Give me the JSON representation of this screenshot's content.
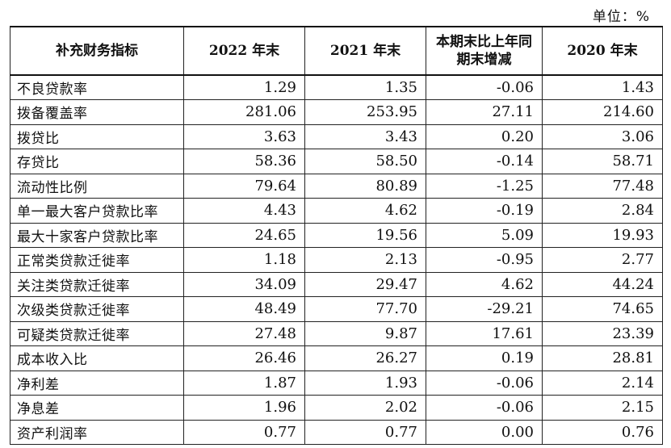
{
  "unit": "单位：%",
  "table": {
    "headers": [
      "补充财务指标",
      "2022 年末",
      "2021 年末",
      "本期末比上年同期末增减",
      "2020 年末"
    ],
    "rows": [
      {
        "label": "不良贷款率",
        "v2022": "1.29",
        "v2021": "1.35",
        "change": "-0.06",
        "v2020": "1.43"
      },
      {
        "label": "拨备覆盖率",
        "v2022": "281.06",
        "v2021": "253.95",
        "change": "27.11",
        "v2020": "214.60"
      },
      {
        "label": "拨贷比",
        "v2022": "3.63",
        "v2021": "3.43",
        "change": "0.20",
        "v2020": "3.06"
      },
      {
        "label": "存贷比",
        "v2022": "58.36",
        "v2021": "58.50",
        "change": "-0.14",
        "v2020": "58.71"
      },
      {
        "label": "流动性比例",
        "v2022": "79.64",
        "v2021": "80.89",
        "change": "-1.25",
        "v2020": "77.48"
      },
      {
        "label": "单一最大客户贷款比率",
        "v2022": "4.43",
        "v2021": "4.62",
        "change": "-0.19",
        "v2020": "2.84"
      },
      {
        "label": "最大十家客户贷款比率",
        "v2022": "24.65",
        "v2021": "19.56",
        "change": "5.09",
        "v2020": "19.93"
      },
      {
        "label": "正常类贷款迁徙率",
        "v2022": "1.18",
        "v2021": "2.13",
        "change": "-0.95",
        "v2020": "2.77"
      },
      {
        "label": "关注类贷款迁徙率",
        "v2022": "34.09",
        "v2021": "29.47",
        "change": "4.62",
        "v2020": "44.24"
      },
      {
        "label": "次级类贷款迁徙率",
        "v2022": "48.49",
        "v2021": "77.70",
        "change": "-29.21",
        "v2020": "74.65"
      },
      {
        "label": "可疑类贷款迁徙率",
        "v2022": "27.48",
        "v2021": "9.87",
        "change": "17.61",
        "v2020": "23.39"
      },
      {
        "label": "成本收入比",
        "v2022": "26.46",
        "v2021": "26.27",
        "change": "0.19",
        "v2020": "28.81"
      },
      {
        "label": "净利差",
        "v2022": "1.87",
        "v2021": "1.93",
        "change": "-0.06",
        "v2020": "2.14"
      },
      {
        "label": "净息差",
        "v2022": "1.96",
        "v2021": "2.02",
        "change": "-0.06",
        "v2020": "2.15"
      },
      {
        "label": "资产利润率",
        "v2022": "0.77",
        "v2021": "0.77",
        "change": "0.00",
        "v2020": "0.76"
      }
    ]
  }
}
